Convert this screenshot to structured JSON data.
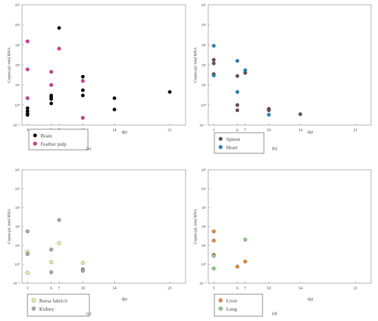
{
  "chart_data": [
    {
      "panel_label": "(a)",
      "type": "scatter",
      "xlabel": "dpi",
      "ylabel": "Copies/μL total RNA",
      "x_ticks": [
        "3",
        "6",
        "7",
        "10",
        "14",
        "21"
      ],
      "y_ticks": [
        "10⁻¹",
        "10⁰",
        "10¹",
        "10²",
        "10³",
        "10⁴",
        "10⁵"
      ],
      "xlim": [
        2.3,
        23.0
      ],
      "ylim_log10": [
        -1,
        5
      ],
      "series": [
        {
          "name": "Brain",
          "color": "#000000",
          "points": [
            [
              3,
              0.38
            ],
            [
              3,
              0.32
            ],
            [
              3,
              0.5
            ],
            [
              3,
              0.7
            ],
            [
              6,
              3.0
            ],
            [
              6,
              2.5
            ],
            [
              6,
              2.0
            ],
            [
              6,
              1.2
            ],
            [
              7,
              7000
            ],
            [
              10,
              26
            ],
            [
              10,
              5.5
            ],
            [
              10,
              3.0
            ],
            [
              14,
              2.2
            ],
            [
              14,
              0.6
            ],
            [
              21,
              4.5
            ]
          ]
        },
        {
          "name": "Feather pulp",
          "color": "#e0379b",
          "points": [
            [
              3,
              1500
            ],
            [
              3,
              60
            ],
            [
              3,
              2.2
            ],
            [
              6,
              45
            ],
            [
              6,
              10
            ],
            [
              7,
              650
            ],
            [
              10,
              16
            ],
            [
              10,
              0.23
            ]
          ]
        }
      ]
    },
    {
      "panel_label": "(b)",
      "type": "scatter",
      "xlabel": "dpi",
      "ylabel": "Copies/μL total RNA",
      "x_ticks": [
        "3",
        "6",
        "7",
        "10",
        "14",
        "21"
      ],
      "y_ticks": [
        "10⁻¹",
        "10⁰",
        "10¹",
        "10²",
        "10³",
        "10⁴",
        "10⁵"
      ],
      "xlim": [
        2.3,
        23.0
      ],
      "ylim_log10": [
        -1,
        5
      ],
      "series": [
        {
          "name": "Spleen",
          "color": "#6e4f4c",
          "points": [
            [
              3,
              180
            ],
            [
              3,
              120
            ],
            [
              3,
              35
            ],
            [
              6,
              28
            ],
            [
              6,
              1.0
            ],
            [
              6,
              0.55
            ],
            [
              7,
              40
            ],
            [
              10,
              0.65
            ],
            [
              10,
              0.55
            ],
            [
              14,
              0.35
            ]
          ]
        },
        {
          "name": "Heart",
          "color": "#1e88c8",
          "points": [
            [
              3,
              900
            ],
            [
              3,
              30
            ],
            [
              6,
              160
            ],
            [
              6,
              4.5
            ],
            [
              7,
              55
            ],
            [
              10,
              0.33
            ]
          ]
        }
      ]
    },
    {
      "panel_label": "(c)",
      "type": "scatter",
      "xlabel": "dpi",
      "ylabel": "Copies/μL total RNA",
      "x_ticks": [
        "3",
        "6",
        "7",
        "10",
        "14",
        "21"
      ],
      "y_ticks": [
        "10⁻¹",
        "10⁰",
        "10¹",
        "10²",
        "10³",
        "10⁴",
        "10⁵"
      ],
      "xlim": [
        2.3,
        23.0
      ],
      "ylim_log10": [
        -1,
        5
      ],
      "series": [
        {
          "name": "Bursa fabricii",
          "color": "#f3f19e",
          "points": [
            [
              3,
              4.5
            ],
            [
              3,
              0.35
            ],
            [
              6,
              1.3
            ],
            [
              7,
              13
            ],
            [
              10,
              1.2
            ]
          ]
        },
        {
          "name": "Kidney",
          "color": "#a9a9a9",
          "points": [
            [
              3,
              55
            ],
            [
              3,
              3.5
            ],
            [
              6,
              6
            ],
            [
              6,
              0.38
            ],
            [
              7,
              220
            ],
            [
              10,
              0.55
            ],
            [
              10,
              0.45
            ]
          ]
        }
      ]
    },
    {
      "panel_label": "(d)",
      "type": "scatter",
      "xlabel": "dpi",
      "ylabel": "Copies/μL total RNA",
      "x_ticks": [
        "3",
        "6",
        "7",
        "10",
        "14",
        "21"
      ],
      "y_ticks": [
        "10⁻¹",
        "10⁰",
        "10¹",
        "10²",
        "10³",
        "10⁴",
        "10⁵"
      ],
      "xlim": [
        2.3,
        23.0
      ],
      "ylim_log10": [
        -1,
        5
      ],
      "series": [
        {
          "name": "Liver",
          "color": "#f0892f",
          "points": [
            [
              3,
              55
            ],
            [
              3,
              18
            ],
            [
              3,
              3.2
            ],
            [
              6,
              0.75
            ],
            [
              7,
              1.4
            ]
          ]
        },
        {
          "name": "Lung",
          "color": "#8dd08a",
          "points": [
            [
              3,
              2.8
            ],
            [
              3,
              0.6
            ],
            [
              7,
              20
            ]
          ]
        }
      ]
    }
  ]
}
